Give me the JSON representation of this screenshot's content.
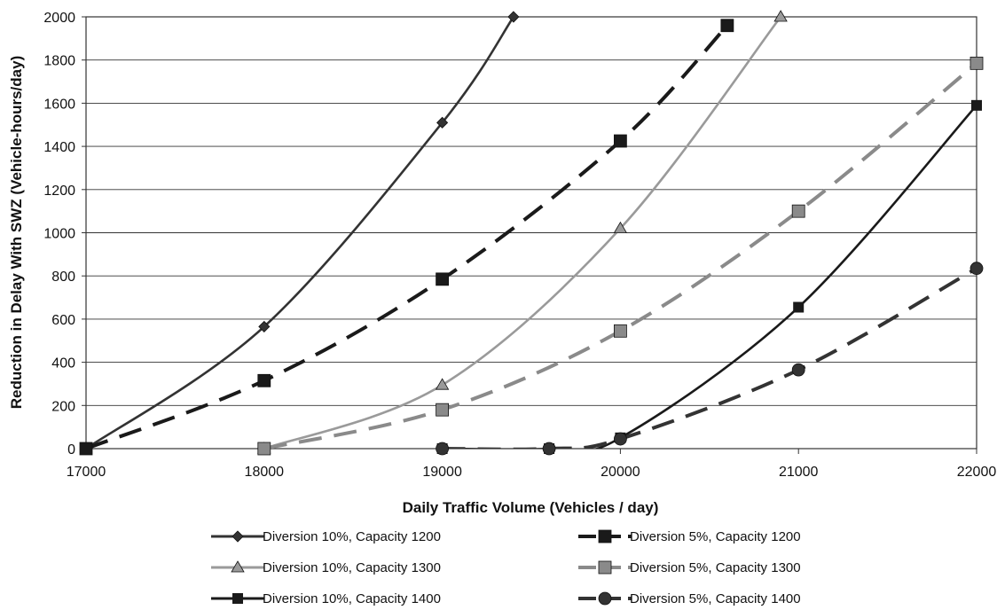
{
  "chart_data": {
    "type": "line",
    "title": "",
    "xlabel": "Daily Traffic Volume (Vehicles / day)",
    "ylabel": "Reduction in Delay With SWZ (Vehicle-hours/day)",
    "xlim": [
      17000,
      22000
    ],
    "ylim": [
      0,
      2000
    ],
    "x_ticks": [
      "17000",
      "18000",
      "19000",
      "20000",
      "21000",
      "22000"
    ],
    "y_ticks": [
      "0",
      "200",
      "400",
      "600",
      "800",
      "1000",
      "1200",
      "1400",
      "1600",
      "1800",
      "2000"
    ],
    "grid": true,
    "legend_position": "bottom",
    "series": [
      {
        "name": "Diversion 10%, Capacity 1200",
        "style": "solid",
        "marker": "diamond",
        "color": "#333333",
        "x": [
          17000,
          18000,
          19000,
          19400
        ],
        "y": [
          0,
          565,
          1510,
          2000
        ]
      },
      {
        "name": "Diversion 5%, Capacity 1200",
        "style": "dashed",
        "marker": "square",
        "color": "#1a1a1a",
        "x": [
          17000,
          18000,
          19000,
          20000,
          20600
        ],
        "y": [
          0,
          315,
          785,
          1425,
          1960
        ]
      },
      {
        "name": "Diversion 10%, Capacity 1300",
        "style": "solid",
        "marker": "triangle",
        "color": "#9a9a9a",
        "x": [
          18000,
          19000,
          20000,
          20900
        ],
        "y": [
          0,
          295,
          1020,
          2000
        ]
      },
      {
        "name": "Diversion 5%, Capacity 1300",
        "style": "dashed",
        "marker": "square",
        "color": "#8a8a8a",
        "x": [
          18000,
          19000,
          20000,
          21000,
          22000
        ],
        "y": [
          0,
          180,
          545,
          1100,
          1785
        ]
      },
      {
        "name": "Diversion 10%, Capacity 1400",
        "style": "solid",
        "marker": "x",
        "color": "#1a1a1a",
        "x": [
          19000,
          19600,
          20000,
          21000,
          22000
        ],
        "y": [
          0,
          0,
          50,
          655,
          1590
        ]
      },
      {
        "name": "Diversion 5%, Capacity 1400",
        "style": "dashed",
        "marker": "circle",
        "color": "#333333",
        "x": [
          19000,
          19600,
          20000,
          21000,
          22000
        ],
        "y": [
          0,
          0,
          45,
          365,
          835
        ]
      }
    ]
  }
}
